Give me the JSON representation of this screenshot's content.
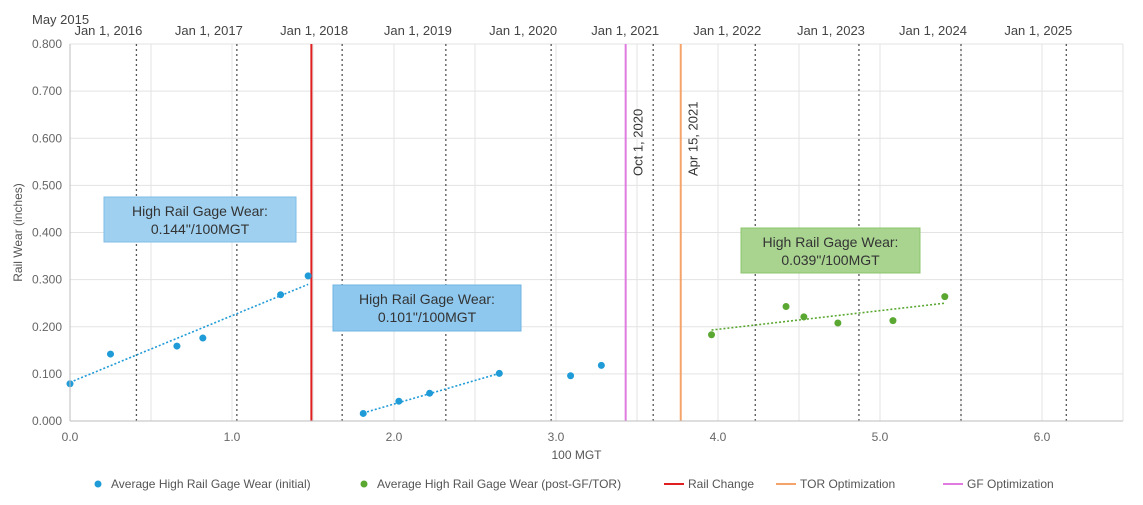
{
  "chart_data": {
    "type": "scatter",
    "xlabel": "100 MGT",
    "ylabel": "Rail Wear (inches)",
    "xlim": [
      0,
      6.5
    ],
    "ylim": [
      0,
      0.8
    ],
    "x_ticks": [
      "0.0",
      "1.0",
      "2.0",
      "3.0",
      "4.0",
      "5.0",
      "6.0"
    ],
    "y_ticks": [
      "0.000",
      "0.100",
      "0.200",
      "0.300",
      "0.400",
      "0.500",
      "0.600",
      "0.700",
      "0.800"
    ],
    "grid": true,
    "legend_position": "bottom",
    "top_axis": {
      "start_label": "May 2015",
      "date_lines": [
        {
          "x": 0.41,
          "label": "Jan 1, 2016"
        },
        {
          "x": 1.03,
          "label": "Jan 1, 2017"
        },
        {
          "x": 1.68,
          "label": "Jan 1, 2018"
        },
        {
          "x": 2.32,
          "label": "Jan 1, 2019"
        },
        {
          "x": 2.97,
          "label": "Jan 1, 2020"
        },
        {
          "x": 3.6,
          "label": "Jan 1, 2021"
        },
        {
          "x": 4.23,
          "label": "Jan 1, 2022"
        },
        {
          "x": 4.87,
          "label": "Jan 1, 2023"
        },
        {
          "x": 5.5,
          "label": "Jan 1, 2024"
        },
        {
          "x": 6.15,
          "label": "Jan 1, 2025"
        }
      ]
    },
    "events": [
      {
        "name": "Rail Change",
        "x": 1.49,
        "color": "#e02020",
        "label": ""
      },
      {
        "name": "GF Optimization",
        "x": 3.43,
        "color": "#e07be0",
        "label": "Oct 1, 2020"
      },
      {
        "name": "TOR Optimization",
        "x": 3.77,
        "color": "#f4a46a",
        "label": "Apr 15, 2021"
      }
    ],
    "series": [
      {
        "name": "Average High Rail Gage Wear (initial)",
        "color": "#1f9bd7",
        "points": [
          [
            0.0,
            0.079
          ],
          [
            0.25,
            0.142
          ],
          [
            0.66,
            0.159
          ],
          [
            0.82,
            0.176
          ],
          [
            1.3,
            0.268
          ],
          [
            1.47,
            0.308
          ],
          [
            1.81,
            0.016
          ],
          [
            2.03,
            0.042
          ],
          [
            2.22,
            0.059
          ],
          [
            2.65,
            0.101
          ],
          [
            3.09,
            0.096
          ],
          [
            3.28,
            0.118
          ]
        ]
      },
      {
        "name": "Average High Rail Gage Wear (post-GF/TOR)",
        "color": "#5aa832",
        "points": [
          [
            3.96,
            0.183
          ],
          [
            4.42,
            0.243
          ],
          [
            4.53,
            0.221
          ],
          [
            4.74,
            0.208
          ],
          [
            5.08,
            0.213
          ],
          [
            5.4,
            0.264
          ]
        ]
      }
    ],
    "trendlines": [
      {
        "color": "#1f9bd7",
        "from": [
          0.0,
          0.082
        ],
        "to": [
          1.47,
          0.29
        ]
      },
      {
        "color": "#1f9bd7",
        "from": [
          1.81,
          0.017
        ],
        "to": [
          2.65,
          0.101
        ]
      },
      {
        "color": "#5aa832",
        "from": [
          3.96,
          0.193
        ],
        "to": [
          5.4,
          0.25
        ]
      }
    ],
    "annotations": [
      {
        "line1": "High Rail Gage Wear:",
        "line2": "0.144\"/100MGT",
        "fill": "#9fd0f0",
        "stroke": "#7fbde6"
      },
      {
        "line1": "High Rail Gage Wear:",
        "line2": "0.101\"/100MGT",
        "fill": "#8ec8ef",
        "stroke": "#6fb5e3"
      },
      {
        "line1": "High Rail Gage Wear:",
        "line2": "0.039\"/100MGT",
        "fill": "#a9d490",
        "stroke": "#8cc46d"
      }
    ],
    "legend": [
      {
        "label": "Average High Rail Gage Wear (initial)",
        "kind": "dot",
        "color": "#1f9bd7"
      },
      {
        "label": "Average High Rail Gage Wear (post-GF/TOR)",
        "kind": "dot",
        "color": "#5aa832"
      },
      {
        "label": "Rail Change",
        "kind": "line",
        "color": "#e02020"
      },
      {
        "label": "TOR Optimization",
        "kind": "line",
        "color": "#f4a46a"
      },
      {
        "label": "GF Optimization",
        "kind": "line",
        "color": "#e07be0"
      }
    ]
  }
}
